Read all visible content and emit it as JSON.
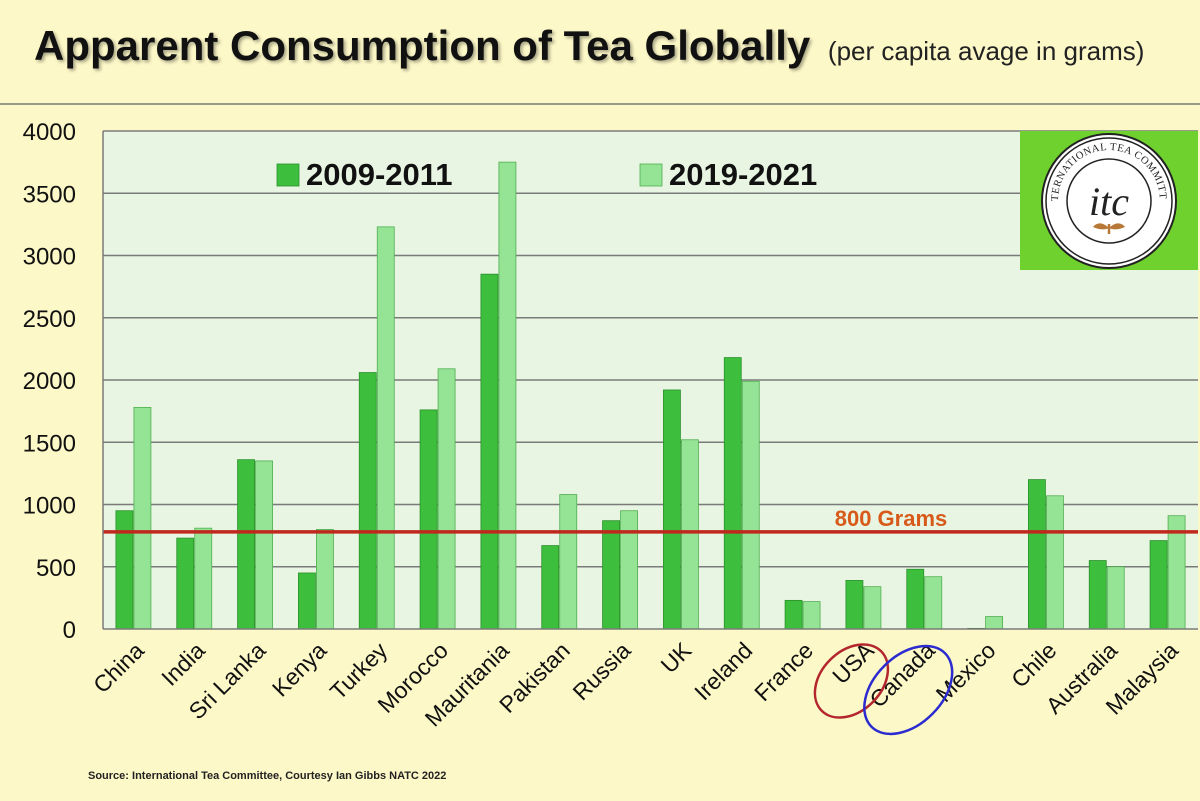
{
  "header": {
    "title": "Apparent Consumption of Tea Globally",
    "subtitle": "(per capita avage in grams)"
  },
  "source": "Source: International Tea Committee, Courtesy Ian Gibbs NATC 2022",
  "logo": {
    "text": "INTERNATIONAL TEA COMMITTEE",
    "monogram": "itc"
  },
  "colors": {
    "background": "#fdf8c8",
    "plot_background": "#e8f5e2",
    "series_2009": "#3dbf3d",
    "series_2019": "#95e495",
    "reference_line": "#c0281e",
    "reference_label": "#d85a1a",
    "usa_circle": "#b3262e",
    "canada_circle": "#2b2bd0",
    "logo_bg": "#6ed12d"
  },
  "chart_data": {
    "type": "bar",
    "title": "Apparent Consumption of Tea Globally",
    "subtitle": "(per capita avage in grams)",
    "xlabel": "",
    "ylabel": "",
    "ylim": [
      0,
      4000
    ],
    "yticks": [
      0,
      500,
      1000,
      1500,
      2000,
      2500,
      3000,
      3500,
      4000
    ],
    "grid": true,
    "legend": "top",
    "categories": [
      "China",
      "India",
      "Sri Lanka",
      "Kenya",
      "Turkey",
      "Morocco",
      "Mauritania",
      "Pakistan",
      "Russia",
      "UK",
      "Ireland",
      "France",
      "USA",
      "Canada",
      "Mexico",
      "Chile",
      "Australia",
      "Malaysia"
    ],
    "series": [
      {
        "name": "2009-2011",
        "values": [
          950,
          730,
          1360,
          450,
          2060,
          1760,
          2850,
          670,
          870,
          1920,
          2180,
          230,
          390,
          480,
          5,
          1200,
          550,
          710
        ]
      },
      {
        "name": "2019-2021",
        "values": [
          1780,
          810,
          1350,
          800,
          3230,
          2090,
          3750,
          1080,
          950,
          1520,
          1990,
          220,
          340,
          420,
          100,
          1070,
          500,
          910
        ]
      }
    ],
    "reference_line": {
      "value": 780,
      "label": "800 Grams"
    },
    "highlighted_categories": [
      "USA",
      "Canada"
    ]
  }
}
